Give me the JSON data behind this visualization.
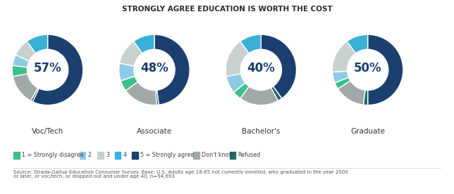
{
  "title": "STRONGLY AGREE EDUCATION IS WORTH THE COST",
  "source_text": "Source: Strada-Gallup Education Consumer Survey. Base: U.S. Adults age 18-65 not currently enrolled, who graduated in the year 2000\nor later, or voc/tech, or stopped out and under age 40, n=94,693",
  "donuts": [
    {
      "label": "Voc/Tech",
      "center_text": "57%",
      "values": [
        57,
        1,
        14,
        5,
        5,
        8,
        10
      ],
      "colors": [
        "#1b3f6e",
        "#1d6b6b",
        "#a0a8a8",
        "#3dbf8a",
        "#8ecae6",
        "#c8d0d0",
        "#3ab0d8"
      ]
    },
    {
      "label": "Associate",
      "center_text": "48%",
      "values": [
        48,
        1,
        16,
        5,
        8,
        12,
        10
      ],
      "colors": [
        "#1b3f6e",
        "#1d6b6b",
        "#a0a8a8",
        "#3dbf8a",
        "#8ecae6",
        "#c8d0d0",
        "#3ab0d8"
      ]
    },
    {
      "label": "Bachelor's",
      "center_text": "40%",
      "values": [
        40,
        2,
        18,
        4,
        8,
        18,
        10
      ],
      "colors": [
        "#1b3f6e",
        "#1d6b6b",
        "#a0a8a8",
        "#3dbf8a",
        "#8ecae6",
        "#c8d0d0",
        "#3ab0d8"
      ]
    },
    {
      "label": "Graduate",
      "center_text": "50%",
      "values": [
        50,
        2,
        14,
        3,
        5,
        16,
        10
      ],
      "colors": [
        "#1b3f6e",
        "#1d6b6b",
        "#a0a8a8",
        "#3dbf8a",
        "#8ecae6",
        "#c8d0d0",
        "#3ab0d8"
      ]
    }
  ],
  "legend_labels": [
    "1 = Strongly disagree",
    "2",
    "3",
    "4",
    "5 = Strongly agree",
    "Don't know",
    "Refused"
  ],
  "legend_colors": [
    "#3dbf8a",
    "#8ecae6",
    "#c8d0d0",
    "#3ab0d8",
    "#1b3f6e",
    "#a0a8a8",
    "#1d6b6b"
  ],
  "bg_color": "#ffffff",
  "title_color": "#2b2b2b",
  "label_color": "#333333",
  "center_text_color": "#1b3f6e",
  "source_color": "#555555"
}
